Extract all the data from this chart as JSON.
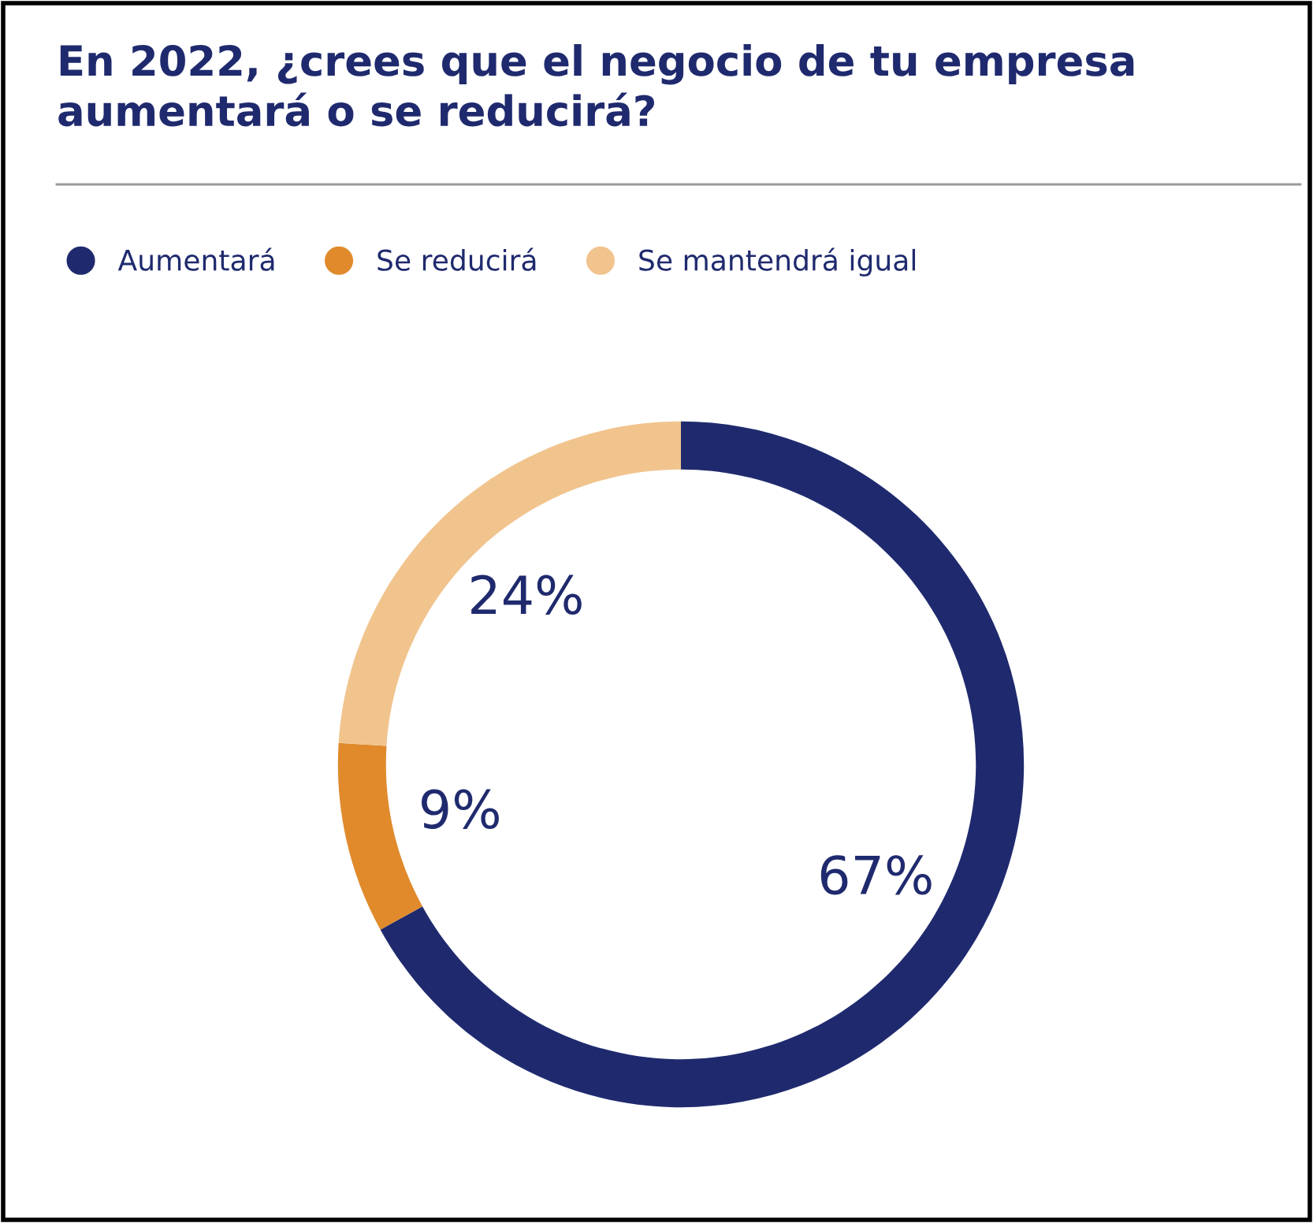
{
  "chart_data": {
    "type": "donut",
    "title": "En 2022, ¿crees que el negocio de tu empresa\naumentará o se reducirá?",
    "categories": [
      "Aumentará",
      "Se reducirá",
      "Se mantendrá igual"
    ],
    "values": [
      67,
      9,
      24
    ],
    "colors": [
      "#1f2a6e",
      "#e08a2c",
      "#f1c48e"
    ],
    "value_labels": [
      "67%",
      "9%",
      "24%"
    ],
    "legend": "top left"
  }
}
